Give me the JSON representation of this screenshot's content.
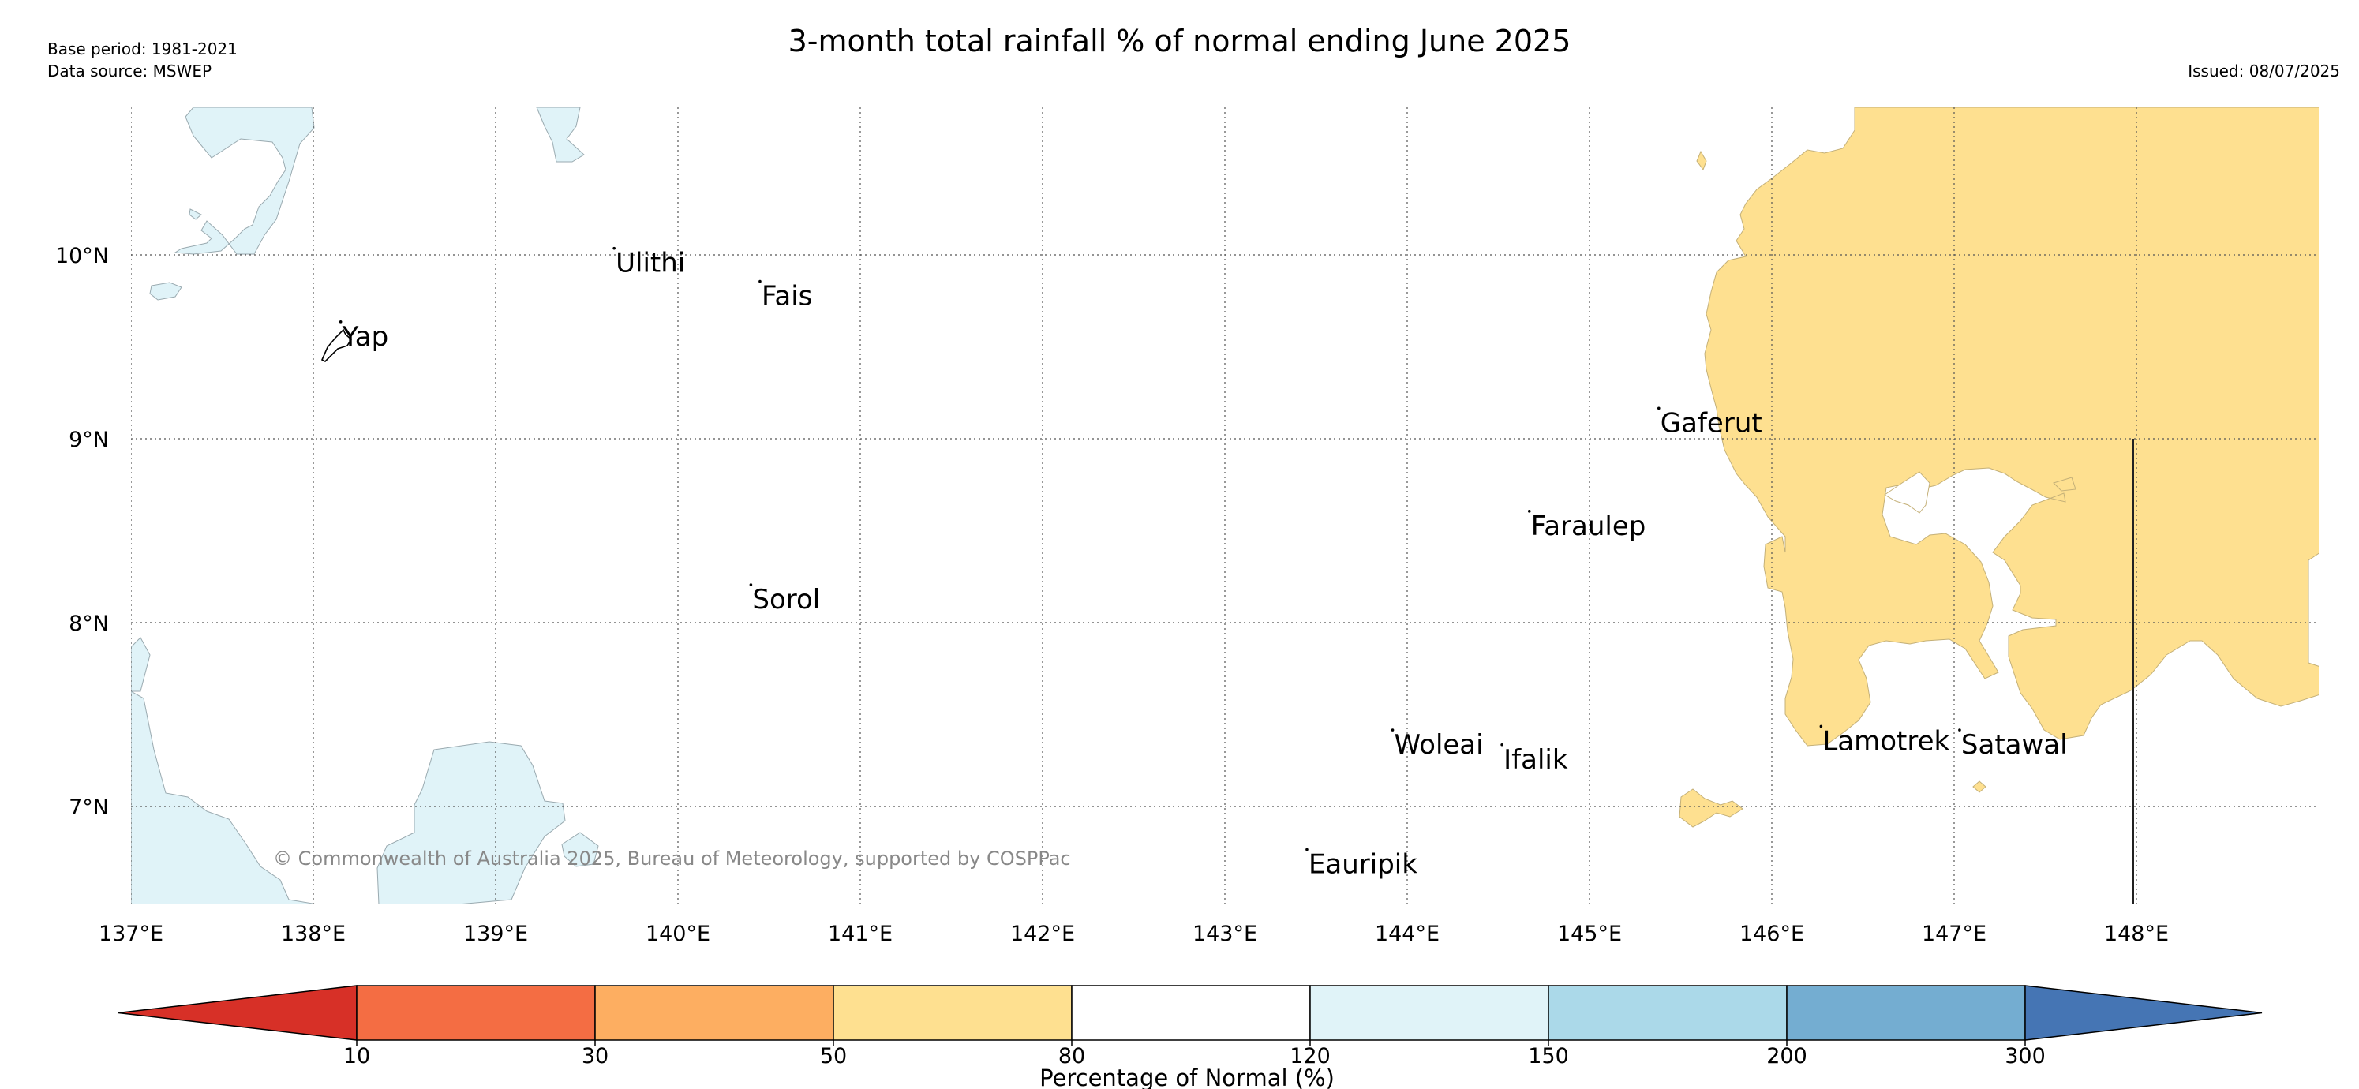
{
  "header": {
    "title": "3-month total rainfall % of normal ending June 2025",
    "base_period": "Base period: 1981-2021",
    "data_source": "Data source: MSWEP",
    "issued": "Issued: 08/07/2025"
  },
  "map": {
    "lon_ticks": [
      {
        "value": 137,
        "label": "137°E"
      },
      {
        "value": 138,
        "label": "138°E"
      },
      {
        "value": 139,
        "label": "139°E"
      },
      {
        "value": 140,
        "label": "140°E"
      },
      {
        "value": 141,
        "label": "141°E"
      },
      {
        "value": 142,
        "label": "142°E"
      },
      {
        "value": 143,
        "label": "143°E"
      },
      {
        "value": 144,
        "label": "144°E"
      },
      {
        "value": 145,
        "label": "145°E"
      },
      {
        "value": 146,
        "label": "146°E"
      },
      {
        "value": 147,
        "label": "147°E"
      },
      {
        "value": 148,
        "label": "148°E"
      }
    ],
    "lat_ticks": [
      {
        "value": 10,
        "label": "10°N"
      },
      {
        "value": 9,
        "label": "9°N"
      },
      {
        "value": 8,
        "label": "8°N"
      },
      {
        "value": 7,
        "label": "7°N"
      }
    ],
    "extent": {
      "lon": [
        137.0,
        149.0
      ],
      "lat": [
        6.5,
        10.8
      ]
    },
    "places": [
      {
        "name": "Yap",
        "lon": 138.15,
        "lat": 9.55
      },
      {
        "name": "Ulithi",
        "lon": 139.65,
        "lat": 9.95
      },
      {
        "name": "Fais",
        "lon": 140.45,
        "lat": 9.77
      },
      {
        "name": "Sorol",
        "lon": 140.4,
        "lat": 8.12
      },
      {
        "name": "Gaferut",
        "lon": 145.38,
        "lat": 9.08
      },
      {
        "name": "Faraulep",
        "lon": 144.67,
        "lat": 8.52
      },
      {
        "name": "Woleai",
        "lon": 143.92,
        "lat": 7.33
      },
      {
        "name": "Ifalik",
        "lon": 144.52,
        "lat": 7.25
      },
      {
        "name": "Lamotrek",
        "lon": 146.27,
        "lat": 7.35
      },
      {
        "name": "Satawal",
        "lon": 147.03,
        "lat": 7.33
      },
      {
        "name": "Eauripik",
        "lon": 143.45,
        "lat": 6.68
      }
    ],
    "copyright": "© Commonwealth of Australia 2025, Bureau of Meteorology, supported by COSPPac"
  },
  "legend": {
    "title": "Percentage of Normal (%)",
    "bins": [
      {
        "color": "#d73027"
      },
      {
        "color": "#f46d43"
      },
      {
        "color": "#fdae61"
      },
      {
        "color": "#fee090"
      },
      {
        "color": "#ffffff"
      },
      {
        "color": "#e0f3f8"
      },
      {
        "color": "#abd9e9"
      },
      {
        "color": "#74add1"
      },
      {
        "color": "#4575b4"
      }
    ],
    "boundaries": [
      "10",
      "30",
      "50",
      "80",
      "120",
      "150",
      "200",
      "300"
    ]
  },
  "colors": {
    "below_normal_50_80": "#fee090",
    "above_normal_120_150": "#e0f3f8",
    "gridline": "#555555"
  }
}
